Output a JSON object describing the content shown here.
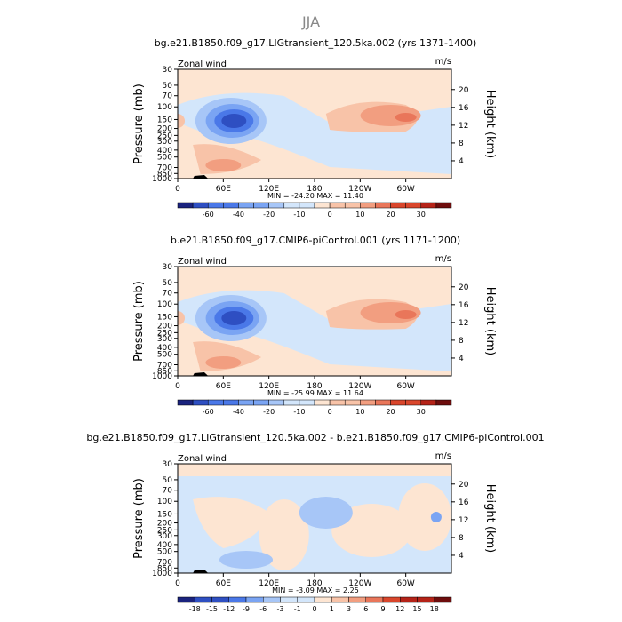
{
  "season": "JJA",
  "panel_fields": {
    "field_label": "Zonal wind",
    "units": "m/s",
    "y_left_label": "Pressure (mb)",
    "y_right_label": "Height (km)",
    "pressure_ticks": [
      "30",
      "50",
      "70",
      "100",
      "150",
      "200",
      "250",
      "300",
      "400",
      "500",
      "700",
      "850",
      "1000"
    ],
    "height_ticks": [
      "20",
      "16",
      "12",
      "8",
      "4"
    ],
    "x_ticks": [
      "0",
      "60E",
      "120E",
      "180",
      "120W",
      "60W"
    ],
    "min_label": "MIN =",
    "max_label": "MAX ="
  },
  "colors": {
    "deep_blue": "#1a237e",
    "blue1": "#2e4fc2",
    "blue2": "#4a78e8",
    "blue3": "#7aa4f3",
    "blue4": "#a7c6f7",
    "blue5": "#d3e6fb",
    "peach": "#fde5d2",
    "salmon1": "#f8c3a8",
    "salmon2": "#f29e80",
    "salmon3": "#e9765a",
    "red1": "#d9462c",
    "red2": "#b52318",
    "dark_red": "#6e0d0d",
    "topography": "#000000"
  },
  "chart_data": [
    {
      "type": "heatmap",
      "title": "bg.e21.B1850.f09_g17.LIGtransient_120.5ka.002 (yrs 1371-1400)",
      "min": "-24.20",
      "max": "11.40",
      "colorbar_labels": [
        "-60",
        "-40",
        "-20",
        "-10",
        "0",
        "10",
        "20",
        "30"
      ],
      "x_range": [
        0,
        360
      ],
      "y_range_pressure": [
        30,
        1000
      ]
    },
    {
      "type": "heatmap",
      "title": "b.e21.B1850.f09_g17.CMIP6-piControl.001 (yrs 1171-1200)",
      "min": "-25.99",
      "max": "11.64",
      "colorbar_labels": [
        "-60",
        "-40",
        "-20",
        "-10",
        "0",
        "10",
        "20",
        "30"
      ],
      "x_range": [
        0,
        360
      ],
      "y_range_pressure": [
        30,
        1000
      ]
    },
    {
      "type": "heatmap",
      "title": "bg.e21.B1850.f09_g17.LIGtransient_120.5ka.002 - b.e21.B1850.f09_g17.CMIP6-piControl.001",
      "min": "-3.09",
      "max": "2.25",
      "colorbar_labels": [
        "-18",
        "-15",
        "-12",
        "-9",
        "-6",
        "-3",
        "-1",
        "0",
        "1",
        "3",
        "6",
        "9",
        "12",
        "15",
        "18"
      ],
      "x_range": [
        0,
        360
      ],
      "y_range_pressure": [
        30,
        1000
      ]
    }
  ]
}
